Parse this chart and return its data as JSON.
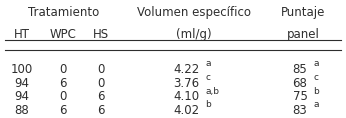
{
  "title_treatment": "Tratamiento",
  "col_headers": [
    "HT",
    "WPC",
    "HS"
  ],
  "col_header_volumen": "Volumen específico",
  "col_header_volumen2": "(ml/g)",
  "col_header_puntaje": "Puntaje",
  "col_header_puntaje2": "panel",
  "rows": [
    {
      "ht": "100",
      "wpc": "0",
      "hs": "0",
      "vol": "4.22",
      "vol_sup": "a",
      "pun": "85",
      "pun_sup": "a"
    },
    {
      "ht": "94",
      "wpc": "6",
      "hs": "0",
      "vol": "3.76",
      "vol_sup": "c",
      "pun": "68",
      "pun_sup": "c"
    },
    {
      "ht": "94",
      "wpc": "0",
      "hs": "6",
      "vol": "4.10",
      "vol_sup": "a,b",
      "pun": "75",
      "pun_sup": "b"
    },
    {
      "ht": "88",
      "wpc": "6",
      "hs": "6",
      "vol": "4.02",
      "vol_sup": "b",
      "pun": "83",
      "pun_sup": "a"
    }
  ],
  "text_color": "#2e2e2e",
  "bg_color": "#ffffff",
  "font_size": 8.5,
  "sup_font_size": 6.5
}
